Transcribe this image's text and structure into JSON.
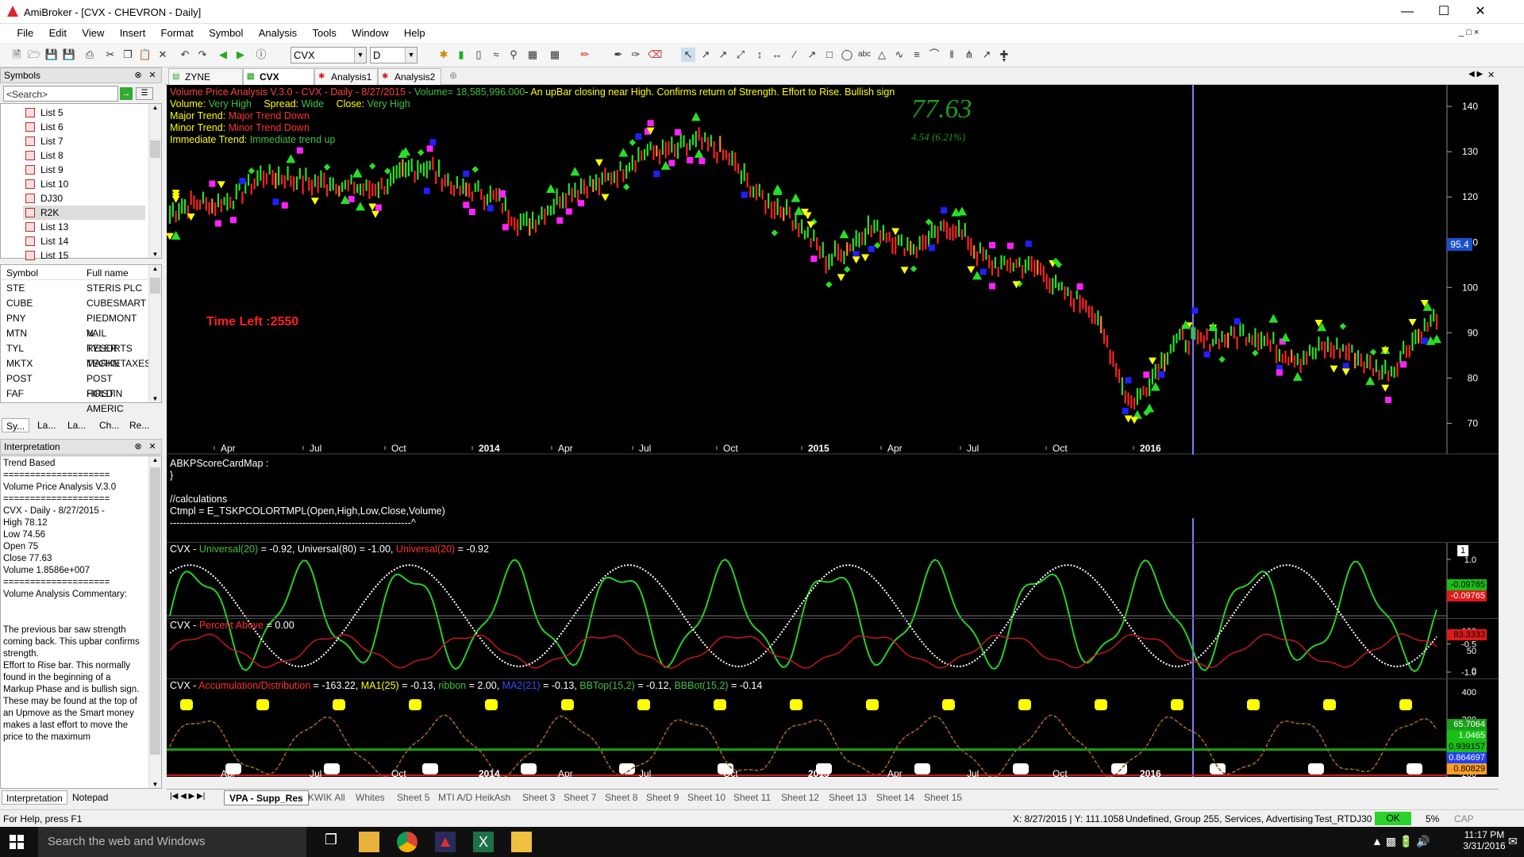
{
  "window": {
    "title": "AmiBroker - [CVX - CHEVRON - Daily]"
  },
  "menu": [
    "File",
    "Edit",
    "View",
    "Insert",
    "Format",
    "Symbol",
    "Analysis",
    "Tools",
    "Window",
    "Help"
  ],
  "toolbar": {
    "symbol": "CVX",
    "interval": "D"
  },
  "symbols_panel": {
    "title": "Symbols",
    "search_placeholder": "<Search>",
    "lists": [
      "List 5",
      "List 6",
      "List 7",
      "List 8",
      "List 9",
      "List 10",
      "DJ30",
      "R2K",
      "List 13",
      "List 14",
      "List 15"
    ],
    "selected_list": "R2K",
    "columns": [
      "Symbol",
      "Full name"
    ],
    "rows": [
      {
        "symbol": "STE",
        "name": "STERIS PLC"
      },
      {
        "symbol": "CUBE",
        "name": "CUBESMART"
      },
      {
        "symbol": "PNY",
        "name": "PIEDMONT N."
      },
      {
        "symbol": "MTN",
        "name": "VAIL RESORTS"
      },
      {
        "symbol": "TYL",
        "name": "TYLER TECHN"
      },
      {
        "symbol": "MKTX",
        "name": "MARKETAXES."
      },
      {
        "symbol": "POST",
        "name": "POST HOLDIN"
      },
      {
        "symbol": "FAF",
        "name": "FIRST AMERIC"
      }
    ],
    "tabs": [
      "Sy...",
      "La...",
      "La...",
      "Ch...",
      "Re..."
    ]
  },
  "interpretation": {
    "title": "Interpretation",
    "lines": [
      "Trend Based",
      "====================",
      "Volume Price Analysis V.3.0",
      "====================",
      "CVX - Daily  - 8/27/2015 -",
      "High  78.12",
      "Low  74.56",
      "Open  75",
      "Close  77.63",
      "Volume  1.8586e+007",
      "====================",
      "Volume Analysis Commentary:",
      "",
      "",
      "The previous bar saw strength",
      "coming back. This upbar confirms",
      "strength.",
      "Effort to Rise bar. This normally",
      "found in the beginning of a",
      "Markup Phase and is bullish sign.",
      "These may be found at the top of",
      "an Upmove as the Smart money",
      "makes a last effort to move the",
      "price to the maximum"
    ],
    "tabs": [
      "Interpretation",
      "Notepad"
    ]
  },
  "doc_tabs": [
    "ZYNE (Daily)",
    "CVX (Daily)",
    "Analysis1",
    "Analysis2"
  ],
  "main_chart": {
    "header_line1_a": "Volume Price Analysis V.3.0 - CVX - Daily - 8/27/2015 - ",
    "header_line1_b": "Volume= 18,585,996.000",
    "header_line1_c": "- An upBar closing near High. Confirms return of Strength. Effort to Rise. Bullish sign",
    "volume_label": "Volume:",
    "volume_val": "Very High",
    "spread_label": "Spread:",
    "spread_val": "Wide",
    "close_label": "Close:",
    "close_val": "Very High",
    "major_label": "Major Trend:",
    "major_val": "Major Trend Down",
    "minor_label": "Minor Trend:",
    "minor_val": "Minor Trend Down",
    "imm_label": "Immediate Trend:",
    "imm_val": "Immediate trend up",
    "big_price": "77.63",
    "change": "4.54  (6.21%)",
    "time_left": "Time Left :2550",
    "last_price": "95.4",
    "y_ticks": [
      "140",
      "130",
      "120",
      "110",
      "100",
      "90",
      "80",
      "70"
    ],
    "x_ticks": [
      "Apr",
      "Jul",
      "Oct",
      "2014",
      "Apr",
      "Jul",
      "Oct",
      "2015",
      "Apr",
      "Jul",
      "Oct",
      "2016"
    ]
  },
  "chart_data": {
    "type": "candlestick",
    "title": "Volume Price Analysis V.3.0 - CVX - Daily",
    "ylim": [
      65,
      143
    ],
    "x": [
      "2013-02",
      "2013-04",
      "2013-06",
      "2013-07",
      "2013-09",
      "2013-10",
      "2013-12",
      "2014-01",
      "2014-03",
      "2014-04",
      "2014-06",
      "2014-07",
      "2014-08",
      "2014-10",
      "2014-11",
      "2014-12",
      "2015-01",
      "2015-03",
      "2015-04",
      "2015-05",
      "2015-06",
      "2015-07",
      "2015-08",
      "2015-09",
      "2015-10",
      "2015-11",
      "2015-12",
      "2016-01",
      "2016-02",
      "2016-03"
    ],
    "series": [
      {
        "values": [
          116,
          119,
          123,
          125,
          121,
          124,
          126,
          121,
          115,
          119,
          125,
          129,
          133,
          126,
          117,
          107,
          112,
          110,
          112,
          105,
          103,
          96,
          75,
          87,
          90,
          88,
          85,
          86,
          81,
          95
        ]
      }
    ]
  },
  "code_pane": {
    "lines": [
      "ABKPScoreCardMap :",
      "}",
      "",
      "//calculations",
      "Ctmpl = E_TSKPCOLORTMPL(Open,High,Low,Close,Volume)",
      "-------------------------------------------------------------------------^"
    ]
  },
  "pane1": {
    "h_a": "CVX - ",
    "h_b": "Universal(20)",
    "h_c": " = -0.92, Universal(80) = -1.00, ",
    "h_d": "Universal(20)",
    "h_e": " = -0.92",
    "ticks": [
      "1.0",
      "0.5",
      "-0.5",
      "-1.0"
    ],
    "badge1": "-0.09765",
    "badge2": "-0.09765",
    "num": "1"
  },
  "pane2": {
    "h_a": "CVX - ",
    "h_b": "Percent Above",
    "h_c": " = 0.00",
    "ticks": [
      "100",
      "50",
      "0"
    ],
    "badge": "83.3333"
  },
  "pane3": {
    "h_a": "CVX - ",
    "h_b": "Accumulation/Distribution",
    "h_c": " = -163.22, ",
    "h_d": "MA1(25)",
    "h_e": " = -0.13, ",
    "h_f": "ribbon",
    "h_g": " = 2.00, ",
    "h_h": "MA2(21)",
    "h_i": " = -0.13, ",
    "h_j": "BBTop(15,2)",
    "h_k": " = -0.12, ",
    "h_l": "BBBot(15,2)",
    "h_m": " = -0.14",
    "ticks": [
      "400",
      "200",
      "0",
      "-200"
    ],
    "badges": [
      "65.7064",
      "1.0465",
      "0.939157",
      "0.864697",
      "0.80829"
    ],
    "x_ticks": [
      "Apr",
      "Jul",
      "Oct",
      "2014",
      "Apr",
      "Jul",
      "Oct",
      "2015",
      "Apr",
      "Jul",
      "Oct",
      "2016"
    ]
  },
  "sheets": [
    "VPA - Supp_Res",
    "KWIK All",
    "Whites",
    "Sheet 5",
    "MTI A/D HeikAsh",
    "Sheet 3",
    "Sheet 7",
    "Sheet 8",
    "Sheet 9",
    "Sheet 10",
    "Sheet 11",
    "Sheet 12",
    "Sheet 13",
    "Sheet 14",
    "Sheet 15"
  ],
  "status": {
    "help": "For Help, press F1",
    "coords": "X: 8/27/2015 | Y: 111.1058",
    "group": "Undefined, Group 255, Services, Advertising",
    "db": "Test_RTDJ30",
    "ok": "OK",
    "pct": "5%",
    "cap": "CAP"
  },
  "taskbar": {
    "search": "Search the web and Windows",
    "time": "11:17 PM",
    "date": "3/31/2016"
  }
}
